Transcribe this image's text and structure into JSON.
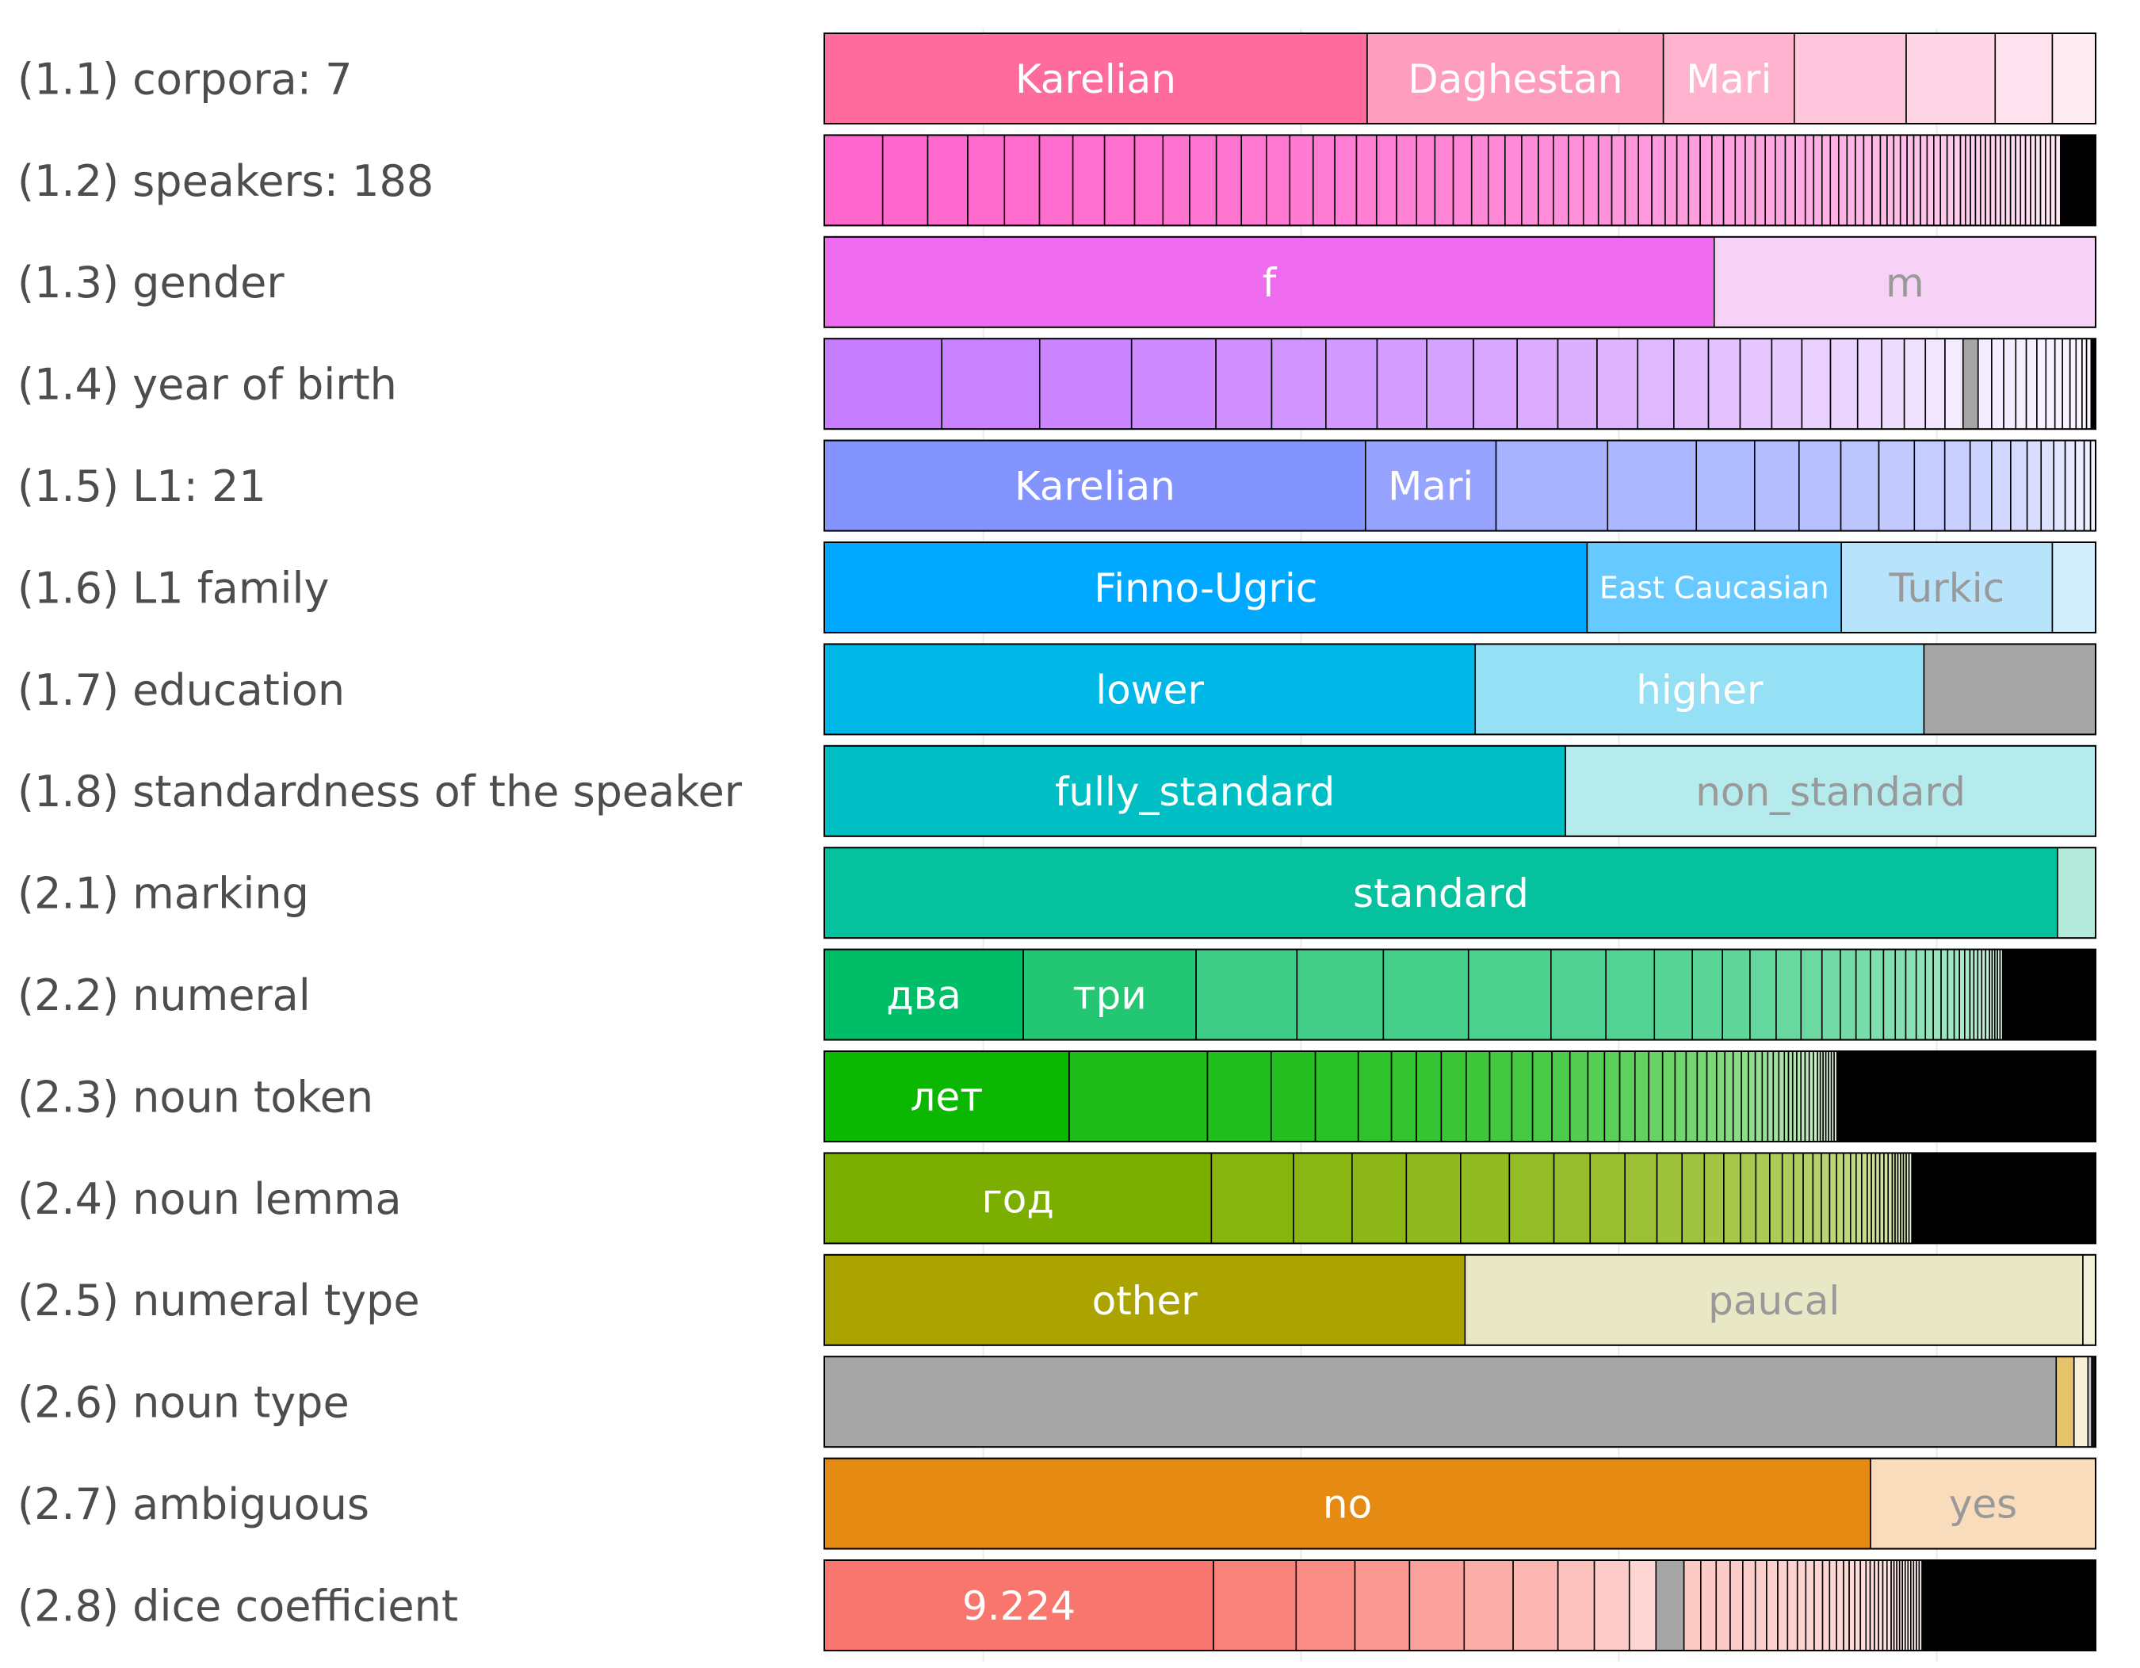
{
  "chart_data": {
    "type": "bar",
    "orientation": "horizontal",
    "stacked": "proportional",
    "grid": true,
    "legend": "none",
    "rows": [
      {
        "label": "(1.1) corpora: 7",
        "color": "#ff6b9d",
        "segments": [
          {
            "value": 0.427,
            "label": "Karelian",
            "color": "#ff6b9d",
            "label_color": "#ffffff"
          },
          {
            "value": 0.233,
            "label": "Daghestan",
            "color": "#ff9dbf",
            "label_color": "#ffffff"
          },
          {
            "value": 0.103,
            "label": "Mari",
            "color": "#ffb3cf",
            "label_color": "#ffffff"
          },
          {
            "value": 0.088,
            "color": "#ffc6dc"
          },
          {
            "value": 0.07,
            "color": "#ffd6e5"
          },
          {
            "value": 0.045,
            "color": "#ffe2ed"
          },
          {
            "value": 0.034,
            "color": "#ffedf3"
          }
        ]
      },
      {
        "label": "(1.2) speakers: 188",
        "color": "#ff66cc",
        "fade": {
          "start": "#ff66cc",
          "end": "#ffe8f6",
          "values": [
            0.035,
            0.027,
            0.024,
            0.022,
            0.021,
            0.02,
            0.019,
            0.018,
            0.017,
            0.016,
            0.016,
            0.015,
            0.015,
            0.014,
            0.014,
            0.013,
            0.013,
            0.012,
            0.012,
            0.012,
            0.011,
            0.011,
            0.011,
            0.01,
            0.01,
            0.01,
            0.01,
            0.009,
            0.009,
            0.009,
            0.009,
            0.008,
            0.008,
            0.008,
            0.008,
            0.008,
            0.007,
            0.007,
            0.007,
            0.007,
            0.007,
            0.007,
            0.006,
            0.006,
            0.006,
            0.006,
            0.006,
            0.006,
            0.006,
            0.005,
            0.005,
            0.005,
            0.005,
            0.005,
            0.005,
            0.005,
            0.005,
            0.005,
            0.004,
            0.004,
            0.004,
            0.004,
            0.004,
            0.004,
            0.004,
            0.004,
            0.004,
            0.004,
            0.004,
            0.004,
            0.003,
            0.003,
            0.003,
            0.003,
            0.003,
            0.003,
            0.003,
            0.003,
            0.003,
            0.003,
            0.003,
            0.003,
            0.003,
            0.003,
            0.003,
            0.003,
            0.003,
            0.003,
            0.003,
            0.003
          ]
        },
        "tail": 0.021
      },
      {
        "label": "(1.3) gender",
        "color": "#ee6aee",
        "segments": [
          {
            "value": 0.7,
            "label": "f",
            "color": "#ee6aee",
            "label_color": "#ffffff"
          },
          {
            "value": 0.3,
            "label": "m",
            "color": "#f7d2f7",
            "label_color": "#999999"
          }
        ]
      },
      {
        "label": "(1.4) year of birth",
        "color": "#c77dff",
        "fade": {
          "start": "#c77dff",
          "end": "#f4ebff",
          "values": [
            0.078,
            0.065,
            0.061,
            0.056,
            0.037,
            0.036,
            0.034,
            0.033,
            0.031,
            0.029,
            0.027,
            0.026,
            0.027,
            0.024,
            0.023,
            0.021,
            0.021,
            0.02,
            0.019,
            0.018,
            0.016,
            0.015,
            0.014,
            0.013,
            0.012
          ]
        },
        "gray": 0.01,
        "tail_fade": {
          "start": "#f4ebff",
          "end": "#faf6ff",
          "values": [
            0.009,
            0.008,
            0.008,
            0.007,
            0.007,
            0.006,
            0.006,
            0.005,
            0.005,
            0.004,
            0.004,
            0.003,
            0.003
          ]
        },
        "tail": 0.003
      },
      {
        "label": "(1.5) L1: 21",
        "color": "#8494ff",
        "segments": [
          {
            "value": 0.427,
            "label": "Karelian",
            "color": "#8494ff",
            "label_color": "#ffffff"
          },
          {
            "value": 0.103,
            "label": "Mari",
            "color": "#96a3ff",
            "label_color": "#ffffff"
          }
        ],
        "fade": {
          "start": "#a8b3ff",
          "end": "#f2f4ff",
          "values": [
            0.088,
            0.07,
            0.046,
            0.035,
            0.033,
            0.03,
            0.028,
            0.024,
            0.02,
            0.017,
            0.015,
            0.013,
            0.011,
            0.01,
            0.009,
            0.008,
            0.007,
            0.005,
            0.004
          ]
        },
        "tail": 0.0
      },
      {
        "label": "(1.6) L1 family",
        "color": "#00a9ff",
        "segments": [
          {
            "value": 0.6,
            "label": "Finno-Ugric",
            "color": "#00a9ff",
            "label_color": "#ffffff"
          },
          {
            "value": 0.2,
            "label": "East Caucasian",
            "color": "#66c9ff",
            "label_color": "#ffffff",
            "small": true
          },
          {
            "value": 0.166,
            "label": "Turkic",
            "color": "#b8e4fb",
            "label_color": "#999999"
          },
          {
            "value": 0.034,
            "color": "#d2edfc"
          }
        ]
      },
      {
        "label": "(1.7) education",
        "color": "#00b8e7",
        "segments": [
          {
            "value": 0.512,
            "label": "lower",
            "color": "#00b8e7",
            "label_color": "#ffffff"
          },
          {
            "value": 0.353,
            "label": "higher",
            "color": "#95e0f5",
            "label_color": "#ffffff"
          },
          {
            "value": 0.135,
            "color": "#a6a6a6"
          }
        ]
      },
      {
        "label": "(1.8) standardness of the speaker",
        "color": "#00bfc4",
        "segments": [
          {
            "value": 0.583,
            "label": "fully_standard",
            "color": "#00bfc4",
            "label_color": "#ffffff"
          },
          {
            "value": 0.417,
            "label": "non_standard",
            "color": "#b5ebed",
            "label_color": "#999999"
          }
        ]
      },
      {
        "label": "(2.1) marking",
        "color": "#06c19e",
        "segments": [
          {
            "value": 0.97,
            "label": "standard",
            "color": "#06c19e",
            "label_color": "#ffffff"
          },
          {
            "value": 0.03,
            "color": "#b5ebdd"
          }
        ]
      },
      {
        "label": "(2.2) numeral",
        "color": "#00be67",
        "segments": [
          {
            "value": 0.152,
            "label": "два",
            "color": "#00be67",
            "label_color": "#ffffff"
          },
          {
            "value": 0.132,
            "label": "три",
            "color": "#22c673",
            "label_color": "#ffffff"
          }
        ],
        "fade": {
          "start": "#3ecd86",
          "end": "#d6f5e5",
          "values": [
            0.077,
            0.066,
            0.065,
            0.063,
            0.042,
            0.037,
            0.029,
            0.023,
            0.021,
            0.02,
            0.019,
            0.016,
            0.014,
            0.012,
            0.011,
            0.01,
            0.009,
            0.008,
            0.008,
            0.007,
            0.006,
            0.006,
            0.005,
            0.005,
            0.004,
            0.004,
            0.004,
            0.003,
            0.003,
            0.003,
            0.003,
            0.003,
            0.002,
            0.002,
            0.002,
            0.002,
            0.002
          ]
        },
        "tail": 0.071
      },
      {
        "label": "(2.3) noun token",
        "color": "#0cb702",
        "segments": [
          {
            "value": 0.177,
            "label": "лет",
            "color": "#0cb702",
            "label_color": "#ffffff"
          }
        ],
        "fade": {
          "start": "#1ebd1a",
          "end": "#e2f6e0",
          "values": [
            0.1,
            0.046,
            0.032,
            0.031,
            0.024,
            0.018,
            0.018,
            0.018,
            0.017,
            0.016,
            0.015,
            0.014,
            0.013,
            0.013,
            0.012,
            0.011,
            0.011,
            0.01,
            0.01,
            0.009,
            0.008,
            0.008,
            0.007,
            0.007,
            0.006,
            0.006,
            0.006,
            0.005,
            0.005,
            0.005,
            0.004,
            0.004,
            0.004,
            0.004,
            0.003,
            0.003,
            0.003,
            0.003,
            0.003,
            0.003,
            0.003,
            0.003,
            0.002,
            0.002,
            0.002,
            0.002,
            0.002,
            0.002,
            0.002
          ]
        },
        "tail": 0.187
      },
      {
        "label": "(2.4) noun lemma",
        "color": "#7cae00",
        "segments": [
          {
            "value": 0.278,
            "label": "год",
            "color": "#7cae00",
            "label_color": "#ffffff"
          }
        ],
        "fade": {
          "start": "#88b40f",
          "end": "#e6f0cc",
          "values": [
            0.059,
            0.042,
            0.039,
            0.039,
            0.035,
            0.032,
            0.026,
            0.025,
            0.023,
            0.018,
            0.016,
            0.014,
            0.012,
            0.011,
            0.01,
            0.009,
            0.008,
            0.007,
            0.007,
            0.006,
            0.006,
            0.005,
            0.005,
            0.005,
            0.004,
            0.004,
            0.004,
            0.003,
            0.003,
            0.003,
            0.003,
            0.003,
            0.003,
            0.002,
            0.002,
            0.002,
            0.002,
            0.002,
            0.002,
            0.002
          ]
        },
        "tail": 0.132
      },
      {
        "label": "(2.5) numeral type",
        "color": "#aba300",
        "segments": [
          {
            "value": 0.504,
            "label": "other",
            "color": "#aba300",
            "label_color": "#ffffff"
          },
          {
            "value": 0.486,
            "label": "paucal",
            "color": "#e8e8c6",
            "label_color": "#999999"
          },
          {
            "value": 0.01,
            "color": "#f2f0d8"
          }
        ]
      },
      {
        "label": "(2.6) noun type",
        "color": "#a6a6a6",
        "segments": [
          {
            "value": 0.969,
            "color": "#a6a6a6"
          },
          {
            "value": 0.014,
            "color": "#e6c36b"
          },
          {
            "value": 0.011,
            "color": "#f7efd6"
          },
          {
            "value": 0.003,
            "color": "#c6c6c6"
          },
          {
            "value": 0.003,
            "color": "#111111"
          }
        ]
      },
      {
        "label": "(2.7) ambiguous",
        "color": "#e58a13",
        "segments": [
          {
            "value": 0.823,
            "label": "no",
            "color": "#e58a13",
            "label_color": "#ffffff"
          },
          {
            "value": 0.177,
            "label": "yes",
            "color": "#f8dcbb",
            "label_color": "#999999"
          }
        ]
      },
      {
        "label": "(2.8) dice coefficient",
        "color": "#f8766d",
        "segments": [
          {
            "value": 0.278,
            "label": "9.224",
            "color": "#f8766d",
            "label_color": "#ffffff"
          }
        ],
        "fade": {
          "start": "#f9837b",
          "end": "#fdd6d3",
          "values": [
            0.059,
            0.042,
            0.039,
            0.039,
            0.035,
            0.032,
            0.026,
            0.025,
            0.019
          ]
        },
        "gray": 0.02,
        "tail_fade": {
          "start": "#fdc9c5",
          "end": "#fff0ef",
          "values": [
            0.012,
            0.011,
            0.01,
            0.009,
            0.009,
            0.008,
            0.008,
            0.007,
            0.007,
            0.006,
            0.006,
            0.006,
            0.005,
            0.005,
            0.005,
            0.004,
            0.004,
            0.004,
            0.004,
            0.003,
            0.003,
            0.003,
            0.003,
            0.003,
            0.003,
            0.002,
            0.002,
            0.002,
            0.002,
            0.002,
            0.002,
            0.002,
            0.002,
            0.002,
            0.002,
            0.002
          ]
        },
        "tail": 0.124
      }
    ]
  }
}
